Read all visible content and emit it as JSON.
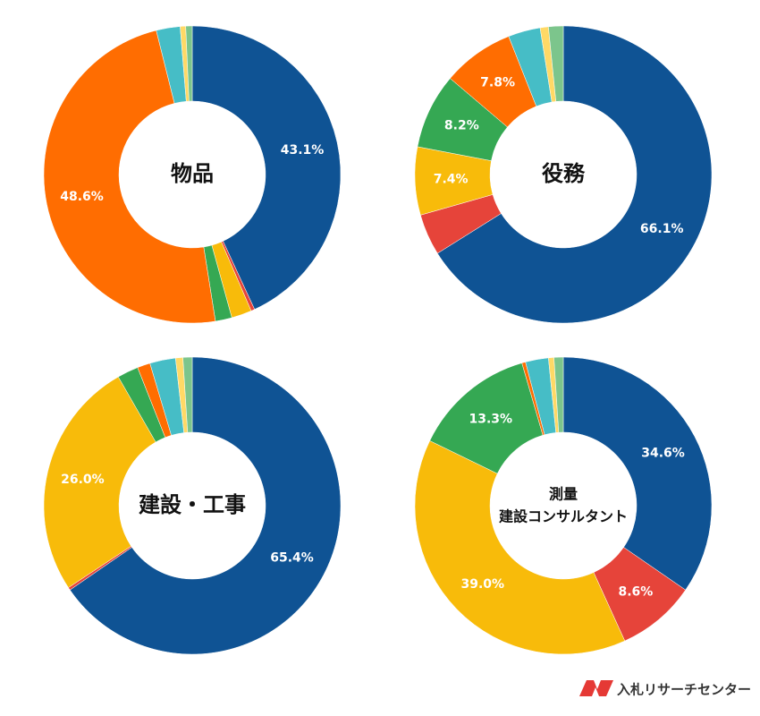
{
  "chart_data": [
    {
      "type": "donut",
      "title": "物品",
      "values": [
        43.1,
        0.4,
        2.2,
        1.8,
        48.6,
        2.6,
        0.6,
        0.7
      ],
      "value_labels": [
        "43.1%",
        null,
        null,
        null,
        "48.6%",
        null,
        null,
        null
      ],
      "colors": [
        "#0f5394",
        "#e6443a",
        "#f8bb0a",
        "#35a853",
        "#ff6d01",
        "#46bdc6",
        "#ffd966",
        "#7cc58c"
      ]
    },
    {
      "type": "donut",
      "title": "役務",
      "values": [
        66.1,
        4.5,
        7.4,
        8.2,
        7.8,
        3.5,
        0.9,
        1.6
      ],
      "value_labels": [
        "66.1%",
        null,
        "7.4%",
        "8.2%",
        "7.8%",
        null,
        null,
        null
      ],
      "colors": [
        "#0f5394",
        "#e6443a",
        "#f8bb0a",
        "#35a853",
        "#ff6d01",
        "#46bdc6",
        "#ffd966",
        "#7cc58c"
      ]
    },
    {
      "type": "donut",
      "title": "建設・工事",
      "values": [
        65.4,
        0.3,
        26.0,
        2.3,
        1.4,
        2.8,
        0.8,
        1.0
      ],
      "value_labels": [
        "65.4%",
        null,
        "26.0%",
        null,
        null,
        null,
        null,
        null
      ],
      "colors": [
        "#0f5394",
        "#e6443a",
        "#f8bb0a",
        "#35a853",
        "#ff6d01",
        "#46bdc6",
        "#ffd966",
        "#7cc58c"
      ]
    },
    {
      "type": "donut",
      "title": "測量",
      "subtitle": "建設コンサルタント",
      "values": [
        34.6,
        8.6,
        39.0,
        13.3,
        0.4,
        2.5,
        0.6,
        1.0
      ],
      "value_labels": [
        "34.6%",
        "8.6%",
        "39.0%",
        "13.3%",
        null,
        null,
        null,
        null
      ],
      "colors": [
        "#0f5394",
        "#e6443a",
        "#f8bb0a",
        "#35a853",
        "#ff6d01",
        "#46bdc6",
        "#ffd966",
        "#7cc58c"
      ]
    }
  ],
  "footer": {
    "brand": "入札リサーチセンター"
  }
}
